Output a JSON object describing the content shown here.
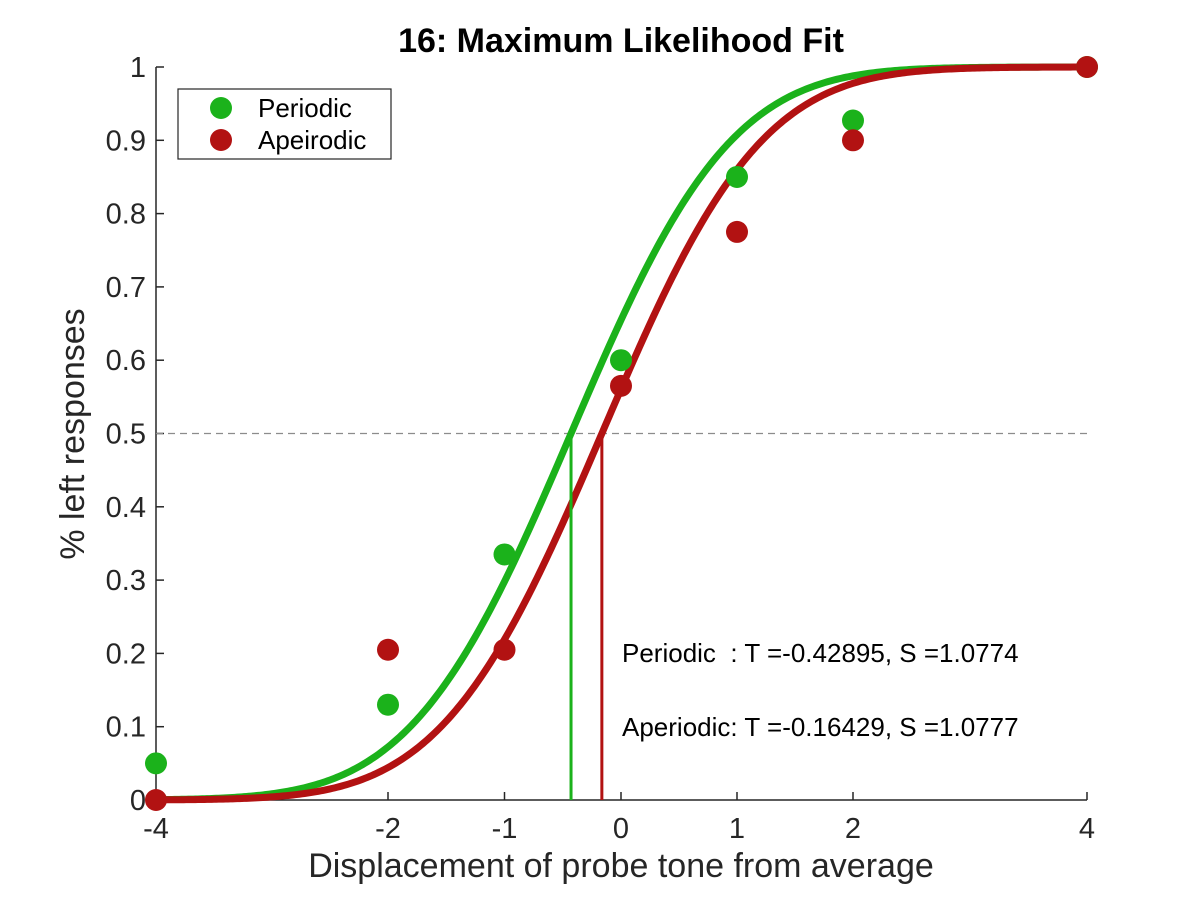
{
  "chart_data": {
    "type": "scatter",
    "title": "16: Maximum Likelihood Fit",
    "xlabel": "Displacement of probe tone from average",
    "ylabel": "% left responses",
    "xlim": [
      -4,
      4
    ],
    "ylim": [
      0,
      1
    ],
    "xticks": [
      -4,
      -2,
      -1,
      0,
      1,
      2,
      4
    ],
    "xtick_labels": [
      "-4",
      "-2",
      "-1",
      "0",
      "1",
      "2",
      "4"
    ],
    "yticks": [
      0,
      0.1,
      0.2,
      0.3,
      0.4,
      0.5,
      0.6,
      0.7,
      0.8,
      0.9,
      1
    ],
    "ytick_labels": [
      "0",
      "0.1",
      "0.2",
      "0.3",
      "0.4",
      "0.5",
      "0.6",
      "0.7",
      "0.8",
      "0.9",
      "1"
    ],
    "x_axis_scale": "custom (-4, -2, -1, 0, 1, 2, 4 tick spacing)",
    "grid": false,
    "legend_placement": "top-left",
    "reference_line": {
      "y": 0.5,
      "style": "dashed",
      "color": "#8c8c8c"
    },
    "series": [
      {
        "name": "Periodic",
        "color": "#1bb21b",
        "points": [
          {
            "x": -4,
            "y": 0.05
          },
          {
            "x": -2,
            "y": 0.13
          },
          {
            "x": -1,
            "y": 0.335
          },
          {
            "x": 0,
            "y": 0.6
          },
          {
            "x": 1,
            "y": 0.85
          },
          {
            "x": 2,
            "y": 0.927
          },
          {
            "x": 4,
            "y": 1.0
          }
        ],
        "fit": {
          "T": -0.42895,
          "S": 1.0774
        },
        "threshold_x": -0.42895
      },
      {
        "name": "Apeirodic",
        "color": "#b21212",
        "points": [
          {
            "x": -4,
            "y": 0.0
          },
          {
            "x": -2,
            "y": 0.205
          },
          {
            "x": -1,
            "y": 0.205
          },
          {
            "x": 0,
            "y": 0.565
          },
          {
            "x": 1,
            "y": 0.775
          },
          {
            "x": 2,
            "y": 0.9
          },
          {
            "x": 4,
            "y": 1.0
          }
        ],
        "fit": {
          "T": -0.16429,
          "S": 1.0777
        },
        "threshold_x": -0.16429
      }
    ],
    "annotations": [
      {
        "text": "Periodic  : T =-0.42895, S =1.0774"
      },
      {
        "text": "Aperiodic: T =-0.16429, S =1.0777"
      }
    ]
  }
}
